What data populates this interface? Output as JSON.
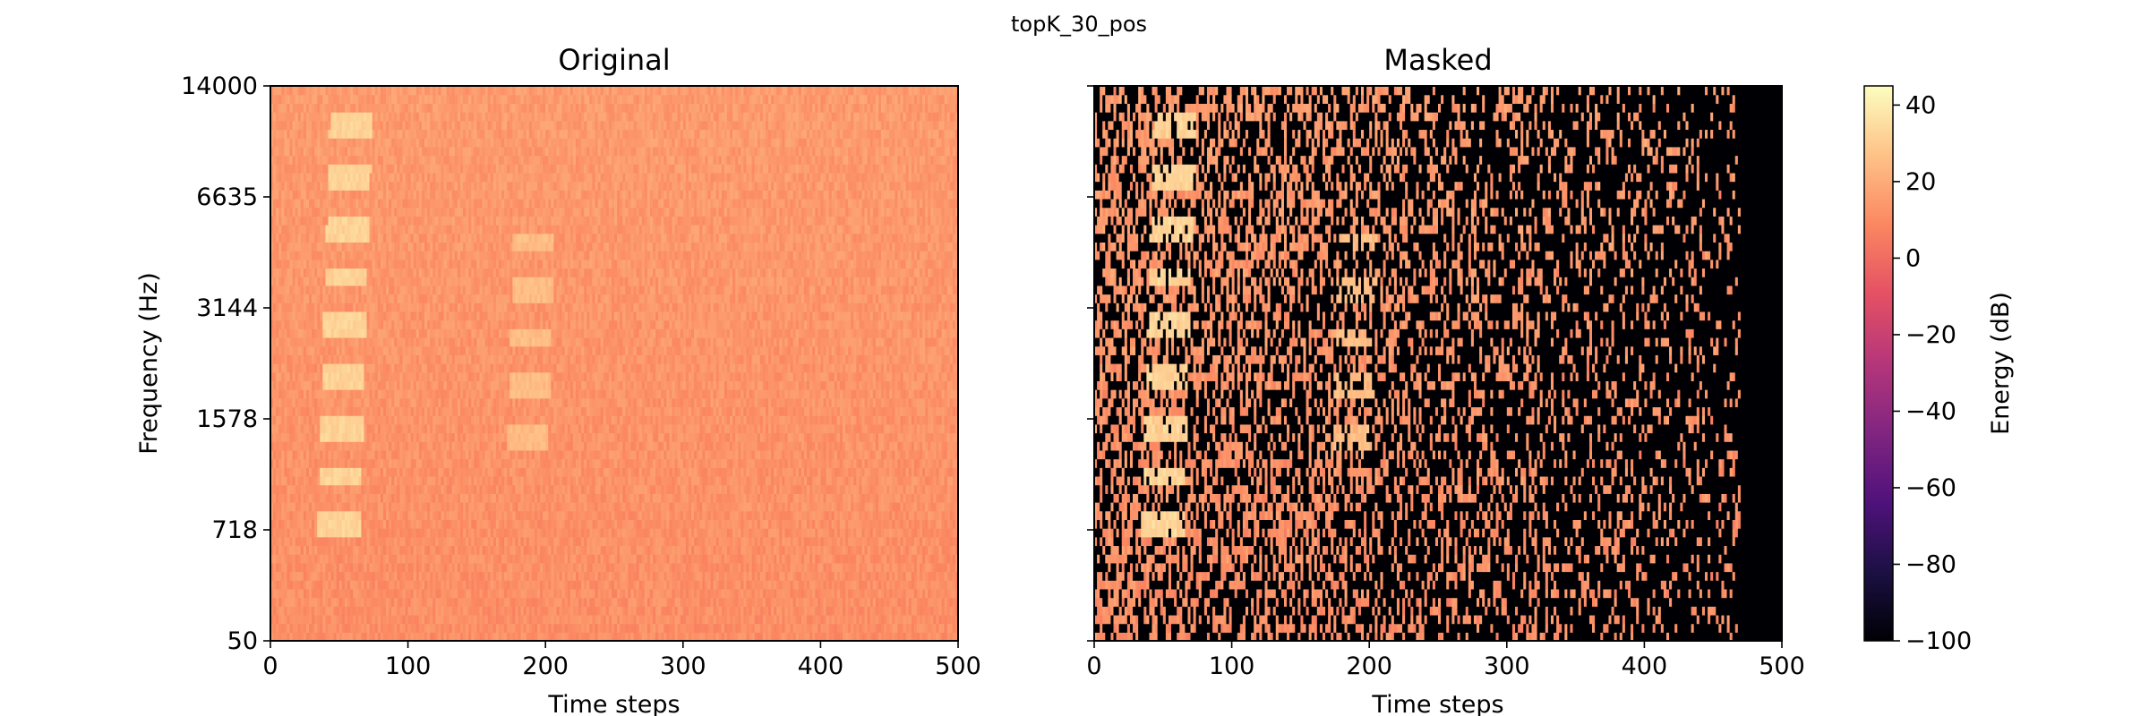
{
  "figure": {
    "suptitle": "topK_30_pos"
  },
  "chart_data": [
    {
      "type": "heatmap",
      "title": "Original",
      "xlabel": "Time steps",
      "ylabel": "Frequency (Hz)",
      "xlim": [
        0,
        500
      ],
      "xticks": [
        0,
        100,
        200,
        300,
        400,
        500
      ],
      "yticks": [
        "50",
        "718",
        "1578",
        "3144",
        "6635",
        "14000"
      ],
      "colormap": "magma",
      "value_range_db": [
        -100,
        45
      ],
      "background_level_db": 15,
      "features": [
        {
          "kind": "vocal harmonics",
          "time_range": [
            40,
            75
          ],
          "freq_range_hz": [
            600,
            12000
          ],
          "peak_db": 35
        },
        {
          "kind": "short chirp",
          "time_range": [
            178,
            212
          ],
          "freq_range_hz": [
            1400,
            6000
          ],
          "peak_db": 28
        }
      ]
    },
    {
      "type": "heatmap",
      "title": "Masked",
      "xlabel": "Time steps",
      "xlim": [
        0,
        500
      ],
      "xticks": [
        0,
        100,
        200,
        300,
        400,
        500
      ],
      "colormap": "magma",
      "mask": "topK_30_pos",
      "masked_value_db": -100,
      "fully_masked_after_step": 470
    }
  ],
  "colorbar": {
    "label": "Energy (dB)",
    "ticks": [
      "40",
      "20",
      "0",
      "−20",
      "−40",
      "−60",
      "−80",
      "−100"
    ],
    "tick_values": [
      40,
      20,
      0,
      -20,
      -40,
      -60,
      -80,
      -100
    ],
    "range": [
      -100,
      45
    ],
    "colors": [
      "#000004",
      "#1c1044",
      "#4f127b",
      "#812581",
      "#b5367a",
      "#e55064",
      "#fb8761",
      "#fec287",
      "#fcfdbf"
    ]
  }
}
